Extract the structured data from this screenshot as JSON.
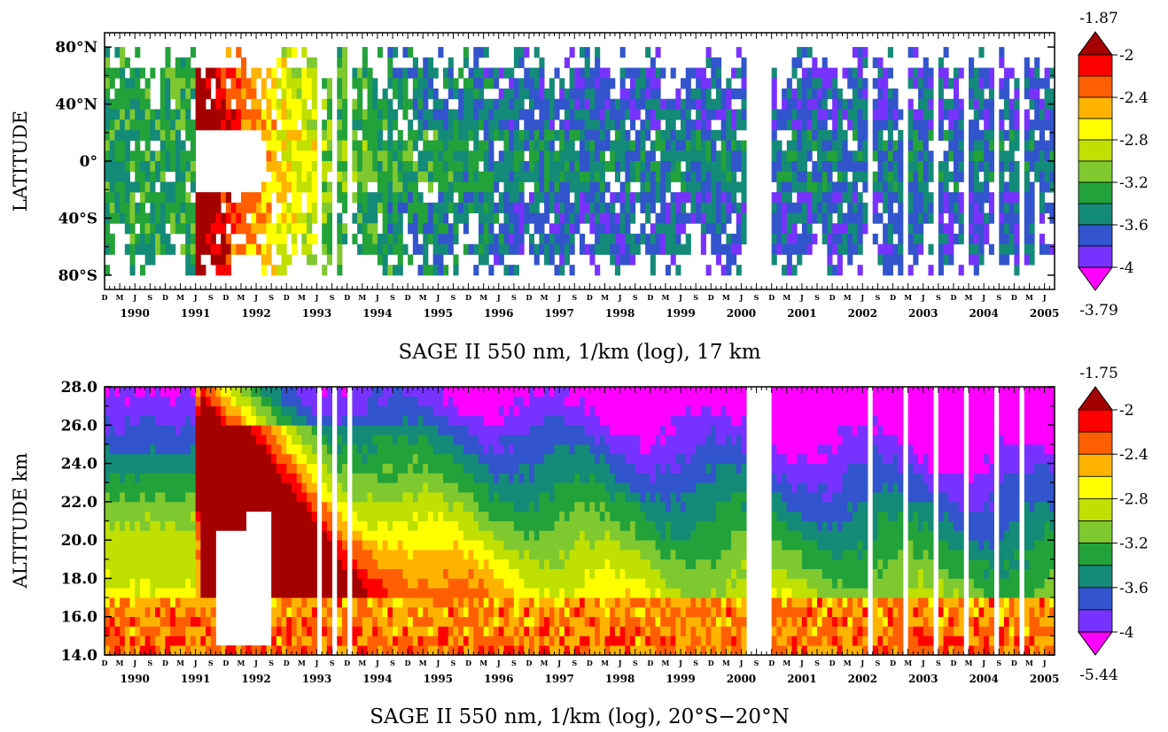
{
  "chart_data": [
    {
      "type": "heatmap",
      "title": "SAGE II 550 nm, 1/km (log), 17 km",
      "xlabel": "",
      "ylabel": "LATITUDE",
      "x_range": [
        "1989-12",
        "2005-08"
      ],
      "y_range": [
        -90,
        90
      ],
      "y_ticks": [
        {
          "value": 80,
          "label": "80°N"
        },
        {
          "value": 40,
          "label": "40°N"
        },
        {
          "value": 0,
          "label": "0°"
        },
        {
          "value": -40,
          "label": "40°S"
        },
        {
          "value": -80,
          "label": "80°S"
        }
      ],
      "month_ticks": [
        "D",
        "M",
        "J",
        "S"
      ],
      "years": [
        "1990",
        "1991",
        "1992",
        "1993",
        "1994",
        "1995",
        "1996",
        "1997",
        "1998",
        "1999",
        "2000",
        "2001",
        "2002",
        "2003",
        "2004",
        "2005"
      ],
      "colorbar": {
        "max_label": "-1.87",
        "min_label": "-3.79",
        "levels": [
          "-2",
          "-2.4",
          "-2.8",
          "-3.2",
          "-3.6",
          "-4"
        ],
        "bin_labels": [
          "-2",
          "",
          "-2.4",
          "",
          "-2.8",
          "",
          "-3.2",
          "",
          "-3.6",
          "",
          "-4"
        ],
        "colors": [
          "#a50000",
          "#ff0000",
          "#ff5f00",
          "#ffb300",
          "#ffff00",
          "#bfe000",
          "#7fc830",
          "#23a23a",
          "#148a78",
          "#3254cc",
          "#7832ff",
          "#ff00ff"
        ]
      },
      "description_of_field": "log10 extinction by latitude and time; peak after 1991 eruption"
    },
    {
      "type": "heatmap",
      "title": "SAGE II 550 nm, 1/km (log), 20°S−20°N",
      "xlabel": "",
      "ylabel": "ALTITUDE  km",
      "x_range": [
        "1989-12",
        "2005-08"
      ],
      "y_range": [
        14,
        28
      ],
      "y_ticks": [
        {
          "value": 28,
          "label": "28.0"
        },
        {
          "value": 26,
          "label": "26.0"
        },
        {
          "value": 24,
          "label": "24.0"
        },
        {
          "value": 22,
          "label": "22.0"
        },
        {
          "value": 20,
          "label": "20.0"
        },
        {
          "value": 18,
          "label": "18.0"
        },
        {
          "value": 16,
          "label": "16.0"
        },
        {
          "value": 14,
          "label": "14.0"
        }
      ],
      "month_ticks": [
        "D",
        "M",
        "J",
        "S"
      ],
      "years": [
        "1990",
        "1991",
        "1992",
        "1993",
        "1994",
        "1995",
        "1996",
        "1997",
        "1998",
        "1999",
        "2000",
        "2001",
        "2002",
        "2003",
        "2004",
        "2005"
      ],
      "colorbar": {
        "max_label": "-1.75",
        "min_label": "-5.44",
        "levels": [
          "-2",
          "-2.4",
          "-2.8",
          "-3.2",
          "-3.6",
          "-4"
        ],
        "bin_labels": [
          "-2",
          "",
          "-2.4",
          "",
          "-2.8",
          "",
          "-3.2",
          "",
          "-3.6",
          "",
          "-4"
        ],
        "colors": [
          "#a50000",
          "#ff0000",
          "#ff5f00",
          "#ffb300",
          "#ffff00",
          "#bfe000",
          "#7fc830",
          "#23a23a",
          "#148a78",
          "#3254cc",
          "#7832ff",
          "#ff00ff"
        ]
      }
    }
  ]
}
